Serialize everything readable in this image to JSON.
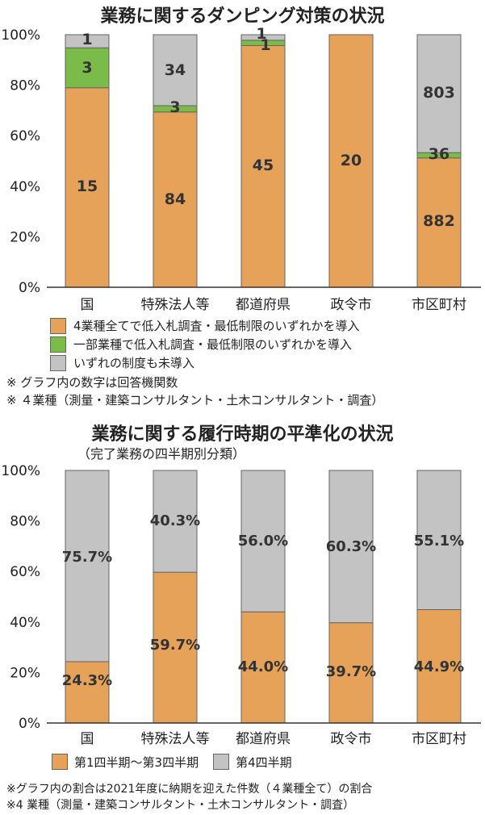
{
  "colors": {
    "orange": "#e7a25a",
    "green": "#7bbb4a",
    "gray": "#c3c3c3",
    "stroke": "#666666",
    "axis": "#333333"
  },
  "chart_data": [
    {
      "type": "bar",
      "stacked": true,
      "title": "業務に関するダンピング対策の状況",
      "categories": [
        "国",
        "特殊法人等",
        "都道府県",
        "政令市",
        "市区町村"
      ],
      "y_ticks": [
        "100%",
        "80%",
        "60%",
        "40%",
        "20%",
        "0%"
      ],
      "ylim": [
        0,
        100
      ],
      "series": [
        {
          "name": "4業種全てで低入札調査・最低制限のいずれかを導入",
          "color": "orange",
          "percent": [
            79.0,
            69.4,
            95.7,
            100,
            51.2
          ],
          "labels": [
            "15",
            "84",
            "45",
            "20",
            "882"
          ]
        },
        {
          "name": "一部業種で低入札調査・最低制限のいずれかを導入",
          "color": "green",
          "percent": [
            15.8,
            2.5,
            2.1,
            0,
            2.1
          ],
          "labels": [
            "3",
            "3",
            "1",
            "",
            "36"
          ]
        },
        {
          "name": "いずれの制度も未導入",
          "color": "gray",
          "percent": [
            5.2,
            28.1,
            2.2,
            0,
            46.7
          ],
          "labels": [
            "1",
            "34",
            "1",
            "",
            "803"
          ]
        }
      ],
      "notes": [
        "※ グラフ内の数字は回答機関数",
        "※ ４業種（測量・建築コンサルタント・土木コンサルタント・調査）"
      ]
    },
    {
      "type": "bar",
      "stacked": true,
      "title": "業務に関する履行時期の平準化の状況",
      "subtitle": "（完了業務の四半期別分類）",
      "categories": [
        "国",
        "特殊法人等",
        "都道府県",
        "政令市",
        "市区町村"
      ],
      "y_ticks": [
        "100%",
        "80%",
        "60%",
        "40%",
        "20%",
        "0%"
      ],
      "ylim": [
        0,
        100
      ],
      "series": [
        {
          "name": "第1四半期～第3四半期",
          "color": "orange",
          "percent": [
            24.3,
            59.7,
            44.0,
            39.7,
            44.9
          ],
          "labels": [
            "24.3%",
            "59.7%",
            "44.0%",
            "39.7%",
            "44.9%"
          ]
        },
        {
          "name": "第4四半期",
          "color": "gray",
          "percent": [
            75.7,
            40.3,
            56.0,
            60.3,
            55.1
          ],
          "labels": [
            "75.7%",
            "40.3%",
            "56.0%",
            "60.3%",
            "55.1%"
          ]
        }
      ],
      "notes": [
        "※グラフ内の割合は2021年度に納期を迎えた件数（４業種全て）の割合",
        "※4 業種（測量・建築コンサルタント・土木コンサルタント・調査）"
      ]
    }
  ]
}
